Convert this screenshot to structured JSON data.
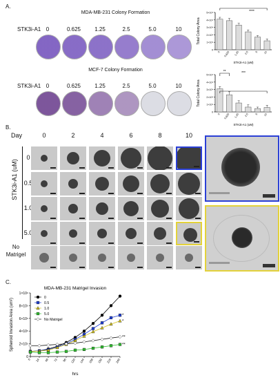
{
  "panelA": {
    "label": "A.",
    "title1": "MDA-MB-231 Colony Formation",
    "title2": "MCF-7 Colony Formation",
    "row_label": "STK3i-A1",
    "doses": [
      "0",
      "0.625",
      "1.25",
      "2.5",
      "5.0",
      "10"
    ],
    "chart1": {
      "ylabel": "Total Colony Area",
      "xlabel": "STK3i-A1 (uM)",
      "yticks": [
        "0",
        "1×10⁴",
        "2×10⁴",
        "3×10⁴",
        "4×10⁴",
        "5×10⁴"
      ],
      "categories": [
        "0",
        "0.625",
        "1.25",
        "2.5",
        "5",
        "10"
      ],
      "sig": "****"
    },
    "chart2": {
      "ylabel": "Total Colony Area",
      "xlabel": "STK3i-A1 (uM)",
      "yticks": [
        "0",
        "1×10⁴",
        "2×10⁴",
        "3×10⁴",
        "4×10⁴",
        "5×10⁴"
      ],
      "categories": [
        "0",
        "0.625",
        "1.25",
        "2.5",
        "5",
        "10"
      ],
      "sig1": "**",
      "sig2": "***"
    }
  },
  "panelB": {
    "label": "B.",
    "day_label": "Day",
    "days": [
      "0",
      "2",
      "4",
      "6",
      "8",
      "10"
    ],
    "concs": [
      "0",
      "0.5",
      "1.0",
      "5.0"
    ],
    "axis_label": "STK3i-A1 (uM)",
    "no_matrigel": "No Matrigel"
  },
  "panelC": {
    "label": "C.",
    "title": "MDA-MB-231 Matrigel Invasion",
    "ylabel": "Spheroid Invasion Area (um²)",
    "xlabel": "hrs",
    "yticks": [
      "0",
      "2×10⁵",
      "4×10⁵",
      "6×10⁵",
      "8×10⁵",
      "1×10⁶"
    ],
    "legend": [
      "0",
      "0.5",
      "1.0",
      "5.0",
      "No Matrigel"
    ],
    "stars": [
      "*",
      "*",
      "**",
      "**"
    ]
  },
  "chart_data": [
    {
      "type": "bar",
      "categories": [
        "0",
        "0.625",
        "1.25",
        "2.5",
        "5",
        "10"
      ],
      "values": [
        41000,
        39000,
        33000,
        24000,
        17000,
        12000
      ],
      "errors": [
        2500,
        3000,
        2500,
        2500,
        2000,
        2500
      ],
      "title": "",
      "xlabel": "STK3i-A1 (uM)",
      "ylabel": "Total Colony Area",
      "ylim": [
        0,
        50000
      ]
    },
    {
      "type": "bar",
      "categories": [
        "0",
        "0.625",
        "1.25",
        "2.5",
        "5",
        "10"
      ],
      "values": [
        31000,
        23000,
        12000,
        6500,
        4500,
        6000
      ],
      "errors": [
        3000,
        4000,
        3000,
        3000,
        2000,
        3000
      ],
      "title": "",
      "xlabel": "STK3i-A1 (uM)",
      "ylabel": "Total Colony Area",
      "ylim": [
        0,
        50000
      ]
    },
    {
      "type": "line",
      "title": "MDA-MB-231 Matrigel Invasion",
      "xlabel": "hrs",
      "ylabel": "Spheroid Invasion Area (um²)",
      "x": [
        0,
        24,
        48,
        72,
        96,
        120,
        144,
        168,
        192,
        216,
        240
      ],
      "xticks": [
        0,
        24,
        48,
        72,
        96,
        120,
        144,
        168,
        192,
        216,
        240
      ],
      "ylim": [
        0,
        1000000
      ],
      "series": [
        {
          "name": "0",
          "color": "#000000",
          "marker": "circle",
          "values": [
            80000,
            90000,
            120000,
            160000,
            220000,
            300000,
            400000,
            520000,
            650000,
            800000,
            950000
          ]
        },
        {
          "name": "0.5",
          "color": "#1f3fd6",
          "marker": "square",
          "values": [
            80000,
            90000,
            110000,
            150000,
            200000,
            270000,
            350000,
            440000,
            530000,
            610000,
            650000
          ]
        },
        {
          "name": "1.0",
          "color": "#d4c21a",
          "marker": "triangle",
          "values": [
            80000,
            85000,
            100000,
            140000,
            190000,
            250000,
            320000,
            390000,
            450000,
            510000,
            560000
          ]
        },
        {
          "name": "5.0",
          "color": "#2fbf2f",
          "marker": "square",
          "values": [
            70000,
            60000,
            60000,
            70000,
            80000,
            100000,
            110000,
            130000,
            150000,
            170000,
            190000
          ]
        },
        {
          "name": "No Matrigel",
          "color": "#ffffff",
          "marker": "diamond",
          "values": [
            170000,
            170000,
            180000,
            190000,
            200000,
            210000,
            230000,
            250000,
            270000,
            290000,
            310000
          ]
        }
      ]
    }
  ]
}
